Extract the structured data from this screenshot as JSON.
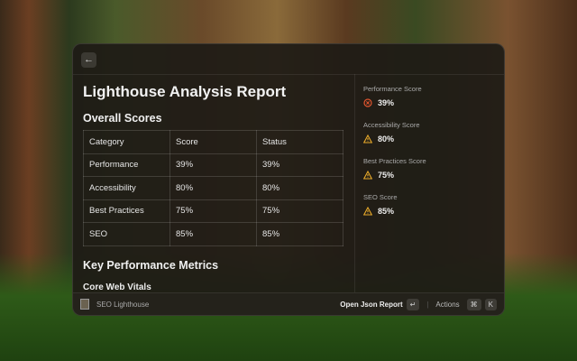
{
  "header": {
    "back_icon": "arrow-left-icon"
  },
  "main": {
    "title": "Lighthouse Analysis Report",
    "overall_heading": "Overall Scores",
    "table": {
      "headers": [
        "Category",
        "Score",
        "Status"
      ],
      "rows": [
        [
          "Performance",
          "39%",
          "39%"
        ],
        [
          "Accessibility",
          "80%",
          "80%"
        ],
        [
          "Best Practices",
          "75%",
          "75%"
        ],
        [
          "SEO",
          "85%",
          "85%"
        ]
      ]
    },
    "metrics_heading": "Key Performance Metrics",
    "core_heading": "Core Web Vitals"
  },
  "sidebar": {
    "items": [
      {
        "label": "Performance Score",
        "value": "39%",
        "icon": "x-circle-icon",
        "color": "#e0552f"
      },
      {
        "label": "Accessibility Score",
        "value": "80%",
        "icon": "warning-icon",
        "color": "#e8a92a"
      },
      {
        "label": "Best Practices Score",
        "value": "75%",
        "icon": "warning-icon",
        "color": "#e8a92a"
      },
      {
        "label": "SEO Score",
        "value": "85%",
        "icon": "warning-icon",
        "color": "#e8a92a"
      }
    ]
  },
  "footer": {
    "app_name": "SEO Lighthouse",
    "primary_action": "Open Json Report",
    "enter_key": "↵",
    "actions_label": "Actions",
    "cmd_key": "⌘",
    "k_key": "K"
  }
}
